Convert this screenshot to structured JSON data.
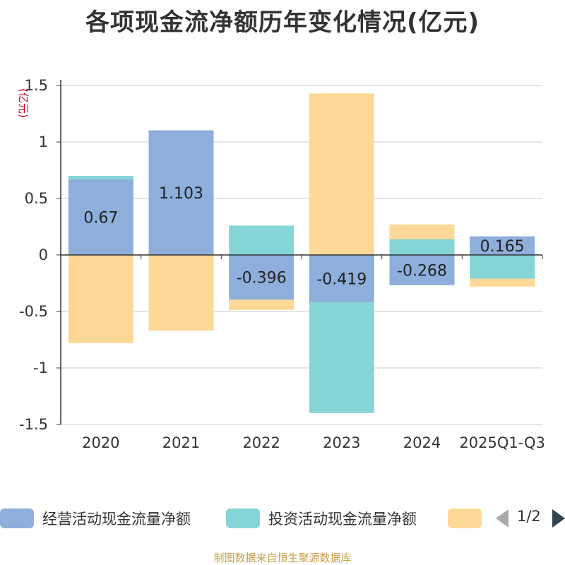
{
  "chart_data": {
    "type": "bar",
    "stacked": true,
    "title": "各项现金流净额历年变化情况(亿元)",
    "ylabel": "(亿元)",
    "categories": [
      "2020",
      "2021",
      "2022",
      "2023",
      "2024",
      "2025Q1-Q3"
    ],
    "ylim": [
      -1.5,
      1.5
    ],
    "yticks": [
      {
        "value": 1.5,
        "label": "1.5"
      },
      {
        "value": 1,
        "label": "1"
      },
      {
        "value": 0.5,
        "label": "0.5"
      },
      {
        "value": 0,
        "label": "0"
      },
      {
        "value": -0.5,
        "label": "-0.5"
      },
      {
        "value": -1,
        "label": "-1"
      },
      {
        "value": -1.5,
        "label": "-1.5"
      }
    ],
    "grid": true,
    "series": [
      {
        "name": "经营活动现金流量净额",
        "color": "#8eaedb",
        "values": [
          0.67,
          1.103,
          -0.396,
          -0.419,
          -0.268,
          0.165
        ],
        "labels": [
          "0.67",
          "1.103",
          "-0.396",
          "-0.419",
          "-0.268",
          "0.165"
        ]
      },
      {
        "name": "投资活动现金流量净额",
        "color": "#86d5d6",
        "values": [
          0.03,
          0.0,
          0.26,
          -0.98,
          0.14,
          -0.21
        ],
        "labels": []
      },
      {
        "name": "",
        "color": "#fed897",
        "values": [
          -0.78,
          -0.67,
          -0.09,
          1.43,
          0.13,
          -0.07
        ],
        "labels": []
      }
    ],
    "legend_position": "bottom"
  },
  "legend": {
    "page_text": "1/2"
  },
  "source_note": "制图数据来自恒生聚源数据库"
}
